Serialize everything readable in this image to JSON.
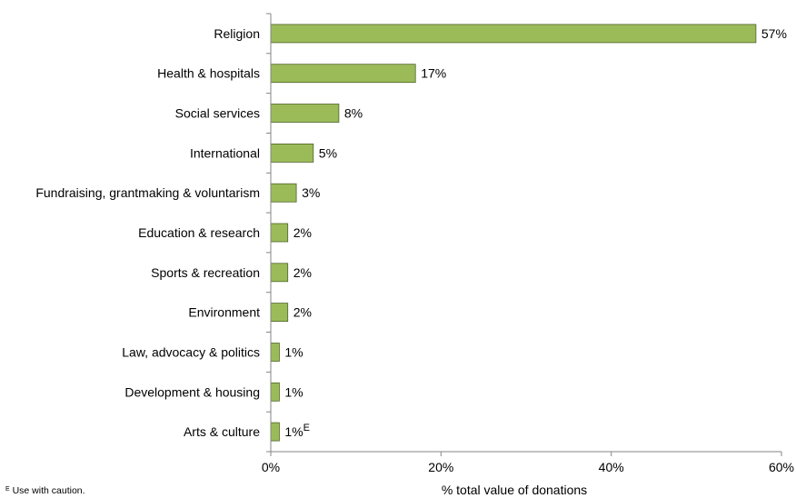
{
  "chart_data": {
    "type": "bar",
    "orientation": "horizontal",
    "categories": [
      "Religion",
      "Health & hospitals",
      "Social services",
      "International",
      "Fundraising, grantmaking & voluntarism",
      "Education & research",
      "Sports & recreation",
      "Environment",
      "Law, advocacy & politics",
      "Development & housing",
      "Arts & culture"
    ],
    "values": [
      57,
      17,
      8,
      5,
      3,
      2,
      2,
      2,
      1,
      1,
      1
    ],
    "data_labels": [
      "57%",
      "17%",
      "8%",
      "5%",
      "3%",
      "2%",
      "2%",
      "2%",
      "1%",
      "1%",
      "1%"
    ],
    "label_flags": [
      "",
      "",
      "",
      "",
      "",
      "",
      "",
      "",
      "",
      "",
      "E"
    ],
    "xlabel": "% total value of donations",
    "ylabel": "",
    "xlim": [
      0,
      60
    ],
    "xticks": [
      "0%",
      "20%",
      "40%",
      "60%"
    ],
    "grid": false,
    "legend": "none",
    "bar_color": "#9bbb59",
    "bar_edge_color": "#4f6228"
  },
  "footnote": {
    "marker": "E",
    "text": " Use with caution."
  }
}
